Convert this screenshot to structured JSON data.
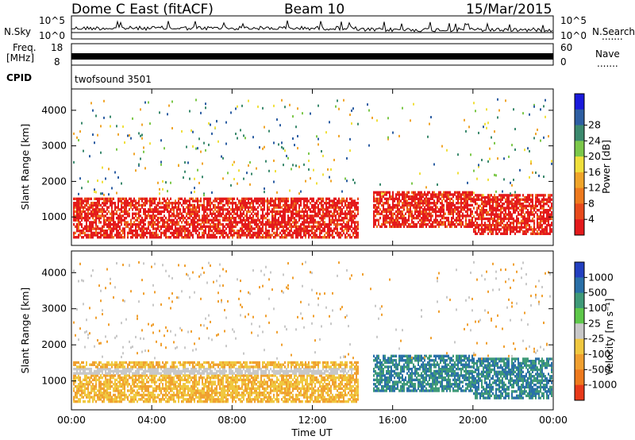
{
  "header": {
    "station": "Dome C East (fitACF)",
    "beam": "Beam 10",
    "date": "15/Mar/2015"
  },
  "params": {
    "nsky_label": "N.Sky",
    "nsky_ticks": [
      "10^5",
      "10^0"
    ],
    "nsearch_label": "N.Search",
    "nsearch_ticks": [
      "10^5",
      "10^0"
    ],
    "freq_label_1": "Freq.",
    "freq_label_2": "[MHz]",
    "freq_ticks": [
      "18",
      "8"
    ],
    "nave_label": "Nave",
    "nave_ticks": [
      "60",
      "0"
    ],
    "cpid_label": "CPID",
    "cpid_value": "twofsound 3501",
    "dots": "......."
  },
  "chart_data": [
    {
      "type": "heatmap",
      "name": "power",
      "ylabel": "Slant Range [km]",
      "ylim": [
        200,
        4600
      ],
      "yticks": [
        "1000",
        "2000",
        "3000",
        "4000"
      ],
      "colorbar": {
        "label": "Power [dB]",
        "ticks": [
          "4",
          "8",
          "12",
          "16",
          "20",
          "24",
          "28"
        ],
        "colors": [
          "#1a1adc",
          "#2e5fa3",
          "#3c8a6e",
          "#7cc84a",
          "#f0e03c",
          "#f0a52a",
          "#ee7a1e",
          "#e84a1c",
          "#e41a1c"
        ]
      }
    },
    {
      "type": "heatmap",
      "name": "velocity",
      "ylabel": "Slant Range [km]",
      "ylim": [
        200,
        4600
      ],
      "yticks": [
        "1000",
        "2000",
        "3000",
        "4000"
      ],
      "xticks": [
        "00:00",
        "04:00",
        "08:00",
        "12:00",
        "16:00",
        "20:00",
        "00:00"
      ],
      "xlabel": "Time UT",
      "colorbar": {
        "label": "Velocity [m s⁻¹]",
        "ticks": [
          "1000",
          "500",
          "100",
          "25",
          "-25",
          "-100",
          "-500",
          "-1000"
        ],
        "colors": [
          "#2340c0",
          "#2a70a8",
          "#3f9a78",
          "#5ec84a",
          "#c8c8c8",
          "#f0c840",
          "#f0a030",
          "#ee7a1e",
          "#e83a1a"
        ]
      }
    }
  ]
}
